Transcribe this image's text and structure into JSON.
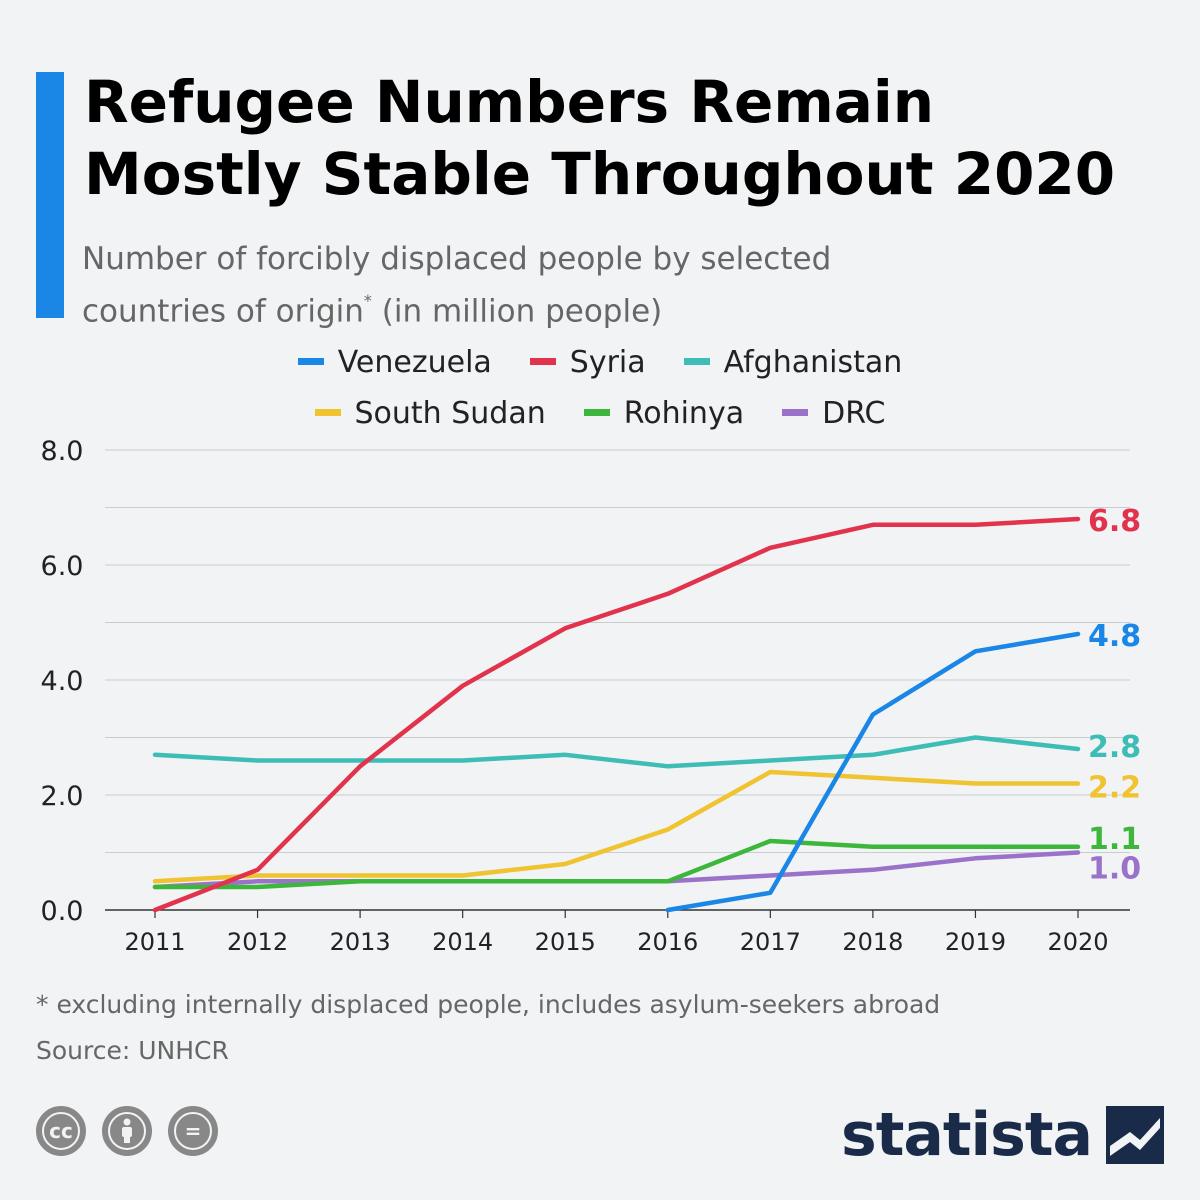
{
  "header": {
    "title_line1": "Refugee Numbers Remain",
    "title_line2": "Mostly Stable Throughout 2020",
    "subtitle_line1": "Number of forcibly displaced people by selected",
    "subtitle_line2_pre": "countries of origin",
    "subtitle_sup": "*",
    "subtitle_line2_post": " (in million people)",
    "accent_color": "#1a86e6"
  },
  "chart_data": {
    "type": "line",
    "x": [
      "2011",
      "2012",
      "2013",
      "2014",
      "2015",
      "2016",
      "2017",
      "2018",
      "2019",
      "2020"
    ],
    "ylim": [
      0,
      8
    ],
    "yticks": [
      "0.0",
      "2.0",
      "4.0",
      "6.0",
      "8.0"
    ],
    "grid": true,
    "legend_position": "top",
    "series": [
      {
        "name": "Venezuela",
        "color": "#1a86e6",
        "values": [
          null,
          null,
          null,
          null,
          null,
          0.0,
          0.3,
          3.4,
          4.5,
          4.8
        ],
        "end_label": "4.8"
      },
      {
        "name": "Syria",
        "color": "#e2334d",
        "values": [
          0.0,
          0.7,
          2.5,
          3.9,
          4.9,
          5.5,
          6.3,
          6.7,
          6.7,
          6.8
        ],
        "end_label": "6.8"
      },
      {
        "name": "Afghanistan",
        "color": "#3dbdb6",
        "values": [
          2.7,
          2.6,
          2.6,
          2.6,
          2.7,
          2.5,
          2.6,
          2.7,
          3.0,
          2.8
        ],
        "end_label": "2.8"
      },
      {
        "name": "South Sudan",
        "color": "#f0c330",
        "values": [
          0.5,
          0.6,
          0.6,
          0.6,
          0.8,
          1.4,
          2.4,
          2.3,
          2.2,
          2.2
        ],
        "end_label": "2.2"
      },
      {
        "name": "Rohinya",
        "color": "#3cb73c",
        "values": [
          0.4,
          0.4,
          0.5,
          0.5,
          0.5,
          0.5,
          1.2,
          1.1,
          1.1,
          1.1
        ],
        "end_label": "1.1"
      },
      {
        "name": "DRC",
        "color": "#9b72c9",
        "values": [
          0.4,
          0.5,
          0.5,
          0.5,
          0.5,
          0.5,
          0.6,
          0.7,
          0.9,
          1.0
        ],
        "end_label": "1.0"
      }
    ]
  },
  "footer": {
    "footnote": "* excluding internally displaced people, includes asylum-seekers abroad",
    "source": "Source: UNHCR",
    "license_icons": [
      "cc-icon",
      "attribution-icon",
      "no-derivatives-icon"
    ],
    "cc_label": "cc",
    "nd_label": "=",
    "logo_text": "statista"
  }
}
